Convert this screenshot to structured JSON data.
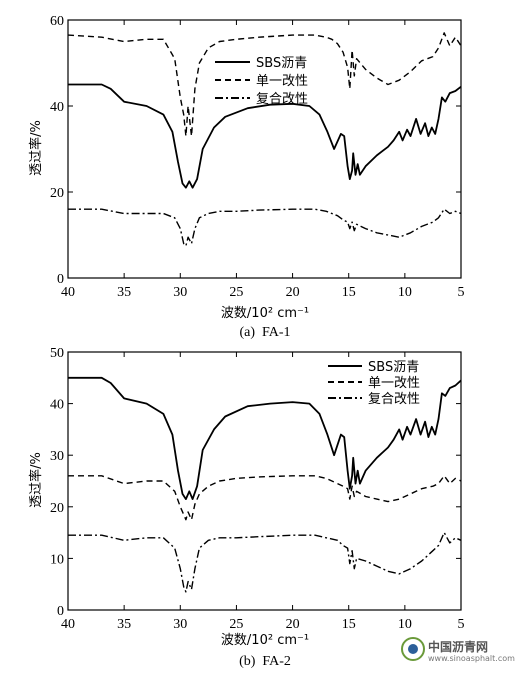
{
  "chart_data": [
    {
      "type": "line",
      "caption": "(a)  FA-1",
      "xlabel": "波数/10² cm⁻¹",
      "ylabel": "透过率/%",
      "xlim": [
        40,
        5
      ],
      "ylim": [
        0,
        60
      ],
      "xticks": [
        "40",
        "35",
        "30",
        "25",
        "20",
        "15",
        "10",
        "5"
      ],
      "yticks": [
        "0",
        "20",
        "40",
        "60"
      ],
      "legend_position": "top-right",
      "series": [
        {
          "name": "SBS沥青",
          "style": "solid",
          "x": [
            40,
            37,
            36.2,
            35,
            33,
            31.5,
            30.7,
            30.2,
            29.8,
            29.5,
            29.2,
            28.9,
            28.5,
            28,
            27,
            26,
            24,
            22,
            20,
            18.5,
            17.6,
            16.9,
            16.3,
            15.7,
            15.4,
            15.1,
            14.9,
            14.7,
            14.6,
            14.4,
            14.2,
            14.0,
            13.5,
            12.5,
            11.5,
            11,
            10.5,
            10.2,
            9.8,
            9.5,
            9.0,
            8.6,
            8.2,
            7.9,
            7.6,
            7.3,
            7.0,
            6.7,
            6.4,
            6.0,
            5.5,
            5.0
          ],
          "y": [
            45,
            45,
            44,
            41,
            40,
            38,
            34,
            27,
            22,
            21,
            22.5,
            21,
            23,
            30,
            35,
            37.5,
            39.5,
            40.3,
            40.5,
            40,
            38,
            34,
            30,
            33.5,
            33,
            26,
            23,
            25,
            29,
            24,
            26.5,
            24,
            26,
            28.5,
            30.5,
            32,
            34,
            32,
            34.5,
            33,
            37,
            33.5,
            36,
            33,
            35,
            33.5,
            37,
            42,
            41,
            43,
            43.5,
            44.5
          ]
        },
        {
          "name": "单一改性",
          "style": "dashed",
          "x": [
            40,
            37,
            35,
            33,
            31.5,
            30.5,
            30.0,
            29.7,
            29.5,
            29.3,
            29.0,
            28.7,
            28.3,
            27.5,
            26.5,
            25,
            23,
            20,
            18,
            17,
            16.5,
            16,
            15.5,
            15.1,
            14.9,
            14.7,
            14.5,
            14.3,
            13.5,
            12.5,
            11.5,
            10.5,
            9.5,
            8.5,
            7.5,
            7.0,
            6.5,
            6.0,
            5.5,
            5.0
          ],
          "y": [
            56.5,
            56,
            55,
            55.5,
            55.5,
            51,
            42,
            38,
            33,
            40,
            33,
            44,
            50,
            53.5,
            55,
            55.5,
            56,
            56.5,
            56.5,
            56,
            55.5,
            54.5,
            52.5,
            49,
            44,
            53,
            47,
            51,
            48.5,
            46.5,
            45,
            46,
            48,
            50.5,
            51.5,
            53.5,
            57,
            54,
            56,
            54
          ]
        },
        {
          "name": "复合改性",
          "style": "dashdot",
          "x": [
            40,
            37,
            35,
            33,
            31.5,
            30.5,
            30.0,
            29.7,
            29.5,
            29.3,
            29.0,
            28.7,
            28.3,
            27.5,
            26.5,
            25,
            23,
            20,
            18,
            17,
            16,
            15.5,
            15.1,
            14.9,
            14.7,
            14.5,
            14.3,
            13.5,
            12.5,
            11.5,
            10.5,
            9.5,
            8.5,
            7.5,
            7.0,
            6.5,
            6.0,
            5.5,
            5.0
          ],
          "y": [
            16,
            16,
            15,
            15,
            15,
            14,
            11.5,
            8,
            7.5,
            9.5,
            8,
            11.5,
            14,
            15,
            15.5,
            15.5,
            15.8,
            16,
            16,
            15.5,
            14.5,
            13.5,
            13,
            11.5,
            13,
            11,
            12.5,
            11.5,
            10.5,
            10,
            9.5,
            10.5,
            12,
            13,
            14,
            16,
            15,
            15.5,
            15
          ]
        }
      ]
    },
    {
      "type": "line",
      "caption": "(b)  FA-2",
      "xlabel": "波数/10² cm⁻¹",
      "ylabel": "透过率/%",
      "xlim": [
        40,
        5
      ],
      "ylim": [
        0,
        50
      ],
      "xticks": [
        "40",
        "35",
        "30",
        "25",
        "20",
        "15",
        "10",
        "5"
      ],
      "yticks": [
        "0",
        "10",
        "20",
        "30",
        "40",
        "50"
      ],
      "legend_position": "top-right",
      "series": [
        {
          "name": "SBS沥青",
          "style": "solid",
          "x": [
            40,
            37,
            36.2,
            35,
            33,
            31.5,
            30.7,
            30.2,
            29.8,
            29.5,
            29.2,
            28.9,
            28.5,
            28,
            27,
            26,
            24,
            22,
            20,
            18.5,
            17.6,
            16.9,
            16.3,
            15.7,
            15.4,
            15.1,
            14.9,
            14.7,
            14.6,
            14.4,
            14.2,
            14.0,
            13.5,
            12.5,
            11.5,
            11,
            10.5,
            10.2,
            9.8,
            9.5,
            9.0,
            8.6,
            8.2,
            7.9,
            7.6,
            7.3,
            7.0,
            6.7,
            6.4,
            6.0,
            5.5,
            5.0
          ],
          "y": [
            45,
            45,
            44,
            41,
            40,
            38,
            34,
            27,
            22.5,
            21.5,
            23,
            21.5,
            24,
            31,
            35,
            37.5,
            39.5,
            40,
            40.3,
            40,
            38,
            34,
            30,
            34,
            33.5,
            27,
            23.5,
            26,
            29.5,
            24.5,
            27,
            24.5,
            27,
            29.5,
            31.5,
            33,
            35,
            33,
            35.5,
            34,
            37,
            34,
            36.5,
            33.5,
            35.5,
            34,
            37,
            42,
            41.5,
            43,
            43.5,
            44.5
          ]
        },
        {
          "name": "单一改性",
          "style": "dashed",
          "x": [
            40,
            37,
            35,
            33,
            31.5,
            30.5,
            30.0,
            29.7,
            29.5,
            29.3,
            29.0,
            28.7,
            28.3,
            27.5,
            26.5,
            25,
            23,
            20,
            18,
            17,
            16.5,
            16,
            15.5,
            15.1,
            14.9,
            14.7,
            14.5,
            14.3,
            13.5,
            12.5,
            11.5,
            10.5,
            9.5,
            8.5,
            7.5,
            7.0,
            6.5,
            6.0,
            5.5,
            5.0
          ],
          "y": [
            26,
            26,
            24.5,
            25,
            25,
            23,
            20,
            18.5,
            17.5,
            19,
            17.5,
            20.5,
            22.5,
            24,
            25,
            25.5,
            25.8,
            26,
            26,
            25.5,
            25,
            24.5,
            24,
            23.5,
            21.5,
            24,
            22,
            23,
            22,
            21.5,
            21,
            21.5,
            22.5,
            23.5,
            24,
            24.5,
            26,
            24.5,
            25.5,
            25
          ]
        },
        {
          "name": "复合改性",
          "style": "dashdot",
          "x": [
            40,
            37,
            35,
            33,
            31.5,
            30.5,
            30.0,
            29.7,
            29.5,
            29.3,
            29.0,
            28.7,
            28.3,
            27.5,
            26.5,
            25,
            23,
            20,
            18,
            17,
            16,
            15.5,
            15.1,
            14.9,
            14.7,
            14.5,
            14.3,
            13.5,
            12.5,
            11.5,
            10.5,
            9.5,
            8.5,
            7.5,
            7.0,
            6.5,
            6.0,
            5.5,
            5.0
          ],
          "y": [
            14.5,
            14.5,
            13.5,
            14,
            14,
            12,
            8,
            4.5,
            3.5,
            5.5,
            4,
            8,
            12,
            13.5,
            14,
            14,
            14.2,
            14.5,
            14.5,
            14,
            13.5,
            12.5,
            12,
            9,
            11.5,
            8,
            10,
            9.5,
            8.5,
            7.5,
            7,
            8,
            9.5,
            11.5,
            12.5,
            15,
            13,
            14,
            13.5
          ]
        }
      ]
    }
  ],
  "watermark": {
    "logo_icon": "china-asphalt-net-logo-icon",
    "text": "中国沥青网",
    "subtext": "www.sinoasphalt.com"
  }
}
